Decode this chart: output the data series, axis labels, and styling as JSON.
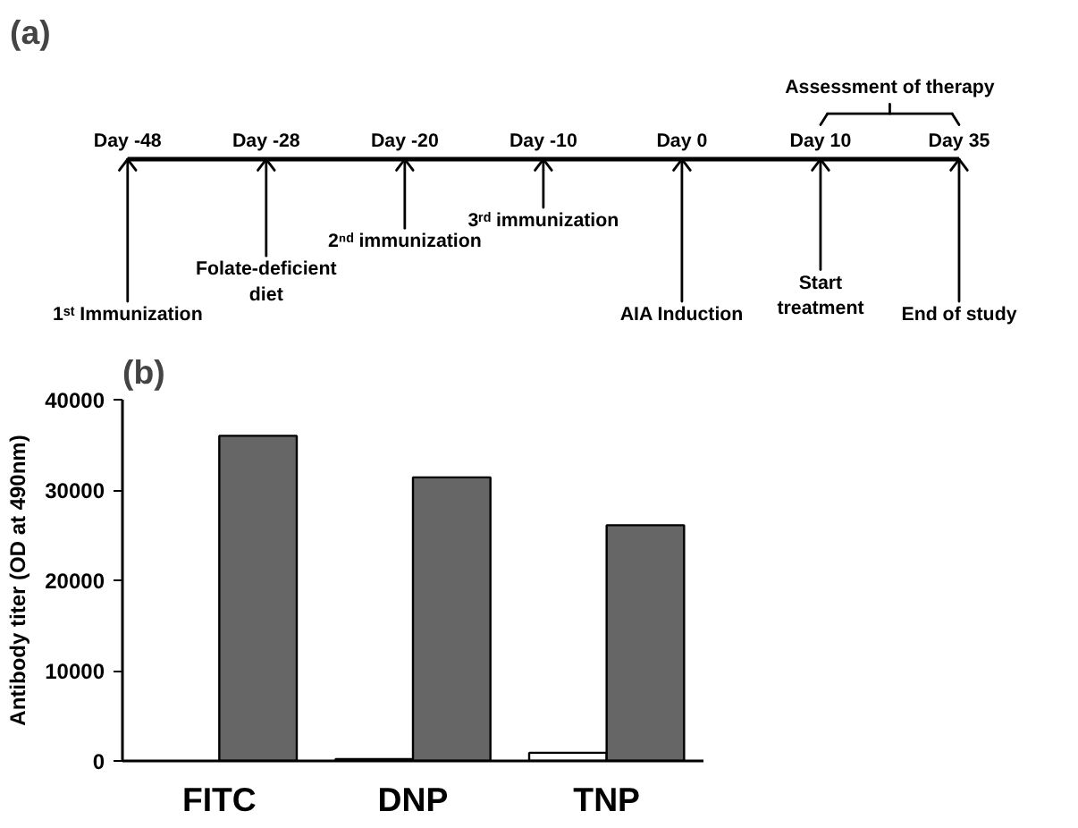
{
  "chart_data": [
    {
      "type": "other",
      "title": "(a)",
      "categories": [
        "Day -48",
        "Day -28",
        "Day -20",
        "Day -10",
        "Day 0",
        "Day 10",
        "Day 35"
      ],
      "annotations": [
        {
          "text": "1ˢᵗ Immunization",
          "x": "Day -48"
        },
        {
          "text": "Folate-deficient\ndiet",
          "x": "Day -28"
        },
        {
          "text": "2ⁿᵈ immunization",
          "x": "Day -20"
        },
        {
          "text": "3ʳᵈ immunization",
          "x": "Day -10"
        },
        {
          "text": "AIA Induction",
          "x": "Day 0"
        },
        {
          "text": "Start\ntreatment",
          "x": "Day 10"
        },
        {
          "text": "End of study",
          "x": "Day 35"
        },
        "Assessment of therapy"
      ]
    },
    {
      "type": "bar",
      "title": "(b)",
      "ylabel": "Antibody titer (OD at 490nm)",
      "categories": [
        "FITC",
        "DNP",
        "TNP"
      ],
      "series": [
        {
          "color": "#ffffff",
          "values": [
            null,
            200,
            900
          ]
        },
        {
          "color": "#666666",
          "values": [
            36000,
            31400,
            26100
          ]
        }
      ],
      "ylim": [
        0,
        40000
      ],
      "yticks": [
        0,
        10000,
        20000,
        30000,
        40000
      ],
      "grid": false
    }
  ]
}
